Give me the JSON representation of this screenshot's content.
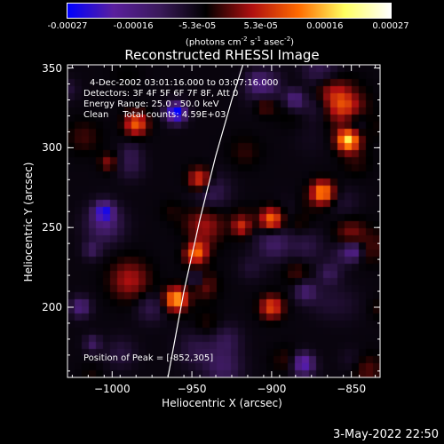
{
  "colorbar": {
    "ticks": [
      "-0.00027",
      "-0.00016",
      "-5.3e-05",
      "5.3e-05",
      "0.00016",
      "0.00027"
    ],
    "tick_values": [
      -0.00027,
      -0.00016,
      -5.3e-05,
      5.3e-05,
      0.00016,
      0.00027
    ],
    "range": [
      -0.00027,
      0.00027
    ],
    "units_main": "(photons cm",
    "units_exp1": "-2",
    "units_mid1": " s",
    "units_exp2": "-1",
    "units_mid2": " asec",
    "units_exp3": "-2",
    "units_end": ")"
  },
  "info": {
    "line1": "4-Dec-2002 03:01:16.000 to 03:07:16.000",
    "line2": "Detectors: 3F 4F 5F 6F 7F 8F, Att 0",
    "line3": "Energy Range: 25.0 - 50.0 keV",
    "line4": "Clean     Total counts: 4.59E+03",
    "peak": "Position of Peak = [-852,305]"
  },
  "timestamp": "3-May-2022 22:50",
  "colors": {
    "background": "#000000",
    "axes": "#ffffff",
    "limb": "#ffffff",
    "colormap": [
      "#0000ff",
      "#5a1f9e",
      "#3a1a5a",
      "#000000",
      "#b01010",
      "#ff6a00",
      "#ffff60",
      "#ffffff"
    ]
  },
  "chart_data": {
    "type": "heatmap",
    "title": "Reconstructed RHESSI Image",
    "xlabel": "Heliocentric X (arcsec)",
    "ylabel": "Heliocentric Y (arcsec)",
    "xlim": [
      -1028,
      -832
    ],
    "ylim": [
      156,
      352
    ],
    "x_ticks": [
      -1000,
      -950,
      -900,
      -850
    ],
    "y_ticks": [
      200,
      250,
      300,
      350
    ],
    "peak_position": [
      -852,
      305
    ],
    "limb": [
      [
        -965,
        156
      ],
      [
        -955,
        210
      ],
      [
        -945,
        255
      ],
      [
        -935,
        295
      ],
      [
        -925,
        330
      ],
      [
        -918,
        352
      ]
    ],
    "hot_spots": [
      {
        "x": -852,
        "y": 305,
        "value": 0.00027
      },
      {
        "x": -948,
        "y": 235,
        "value": 0.00024
      },
      {
        "x": -960,
        "y": 205,
        "value": 0.00023
      },
      {
        "x": -900,
        "y": 255,
        "value": 0.00019
      },
      {
        "x": -868,
        "y": 272,
        "value": 0.00021
      },
      {
        "x": -985,
        "y": 315,
        "value": 0.00017
      },
      {
        "x": -945,
        "y": 280,
        "value": 0.00016
      },
      {
        "x": -900,
        "y": 200,
        "value": 0.00015
      }
    ],
    "cold_spots": [
      {
        "x": -960,
        "y": 322,
        "value": -0.00027
      },
      {
        "x": -1005,
        "y": 260,
        "value": -0.00018
      },
      {
        "x": -880,
        "y": 165,
        "value": -0.00016
      },
      {
        "x": -848,
        "y": 235,
        "value": -0.00015
      },
      {
        "x": -1020,
        "y": 200,
        "value": -0.00012
      }
    ]
  }
}
